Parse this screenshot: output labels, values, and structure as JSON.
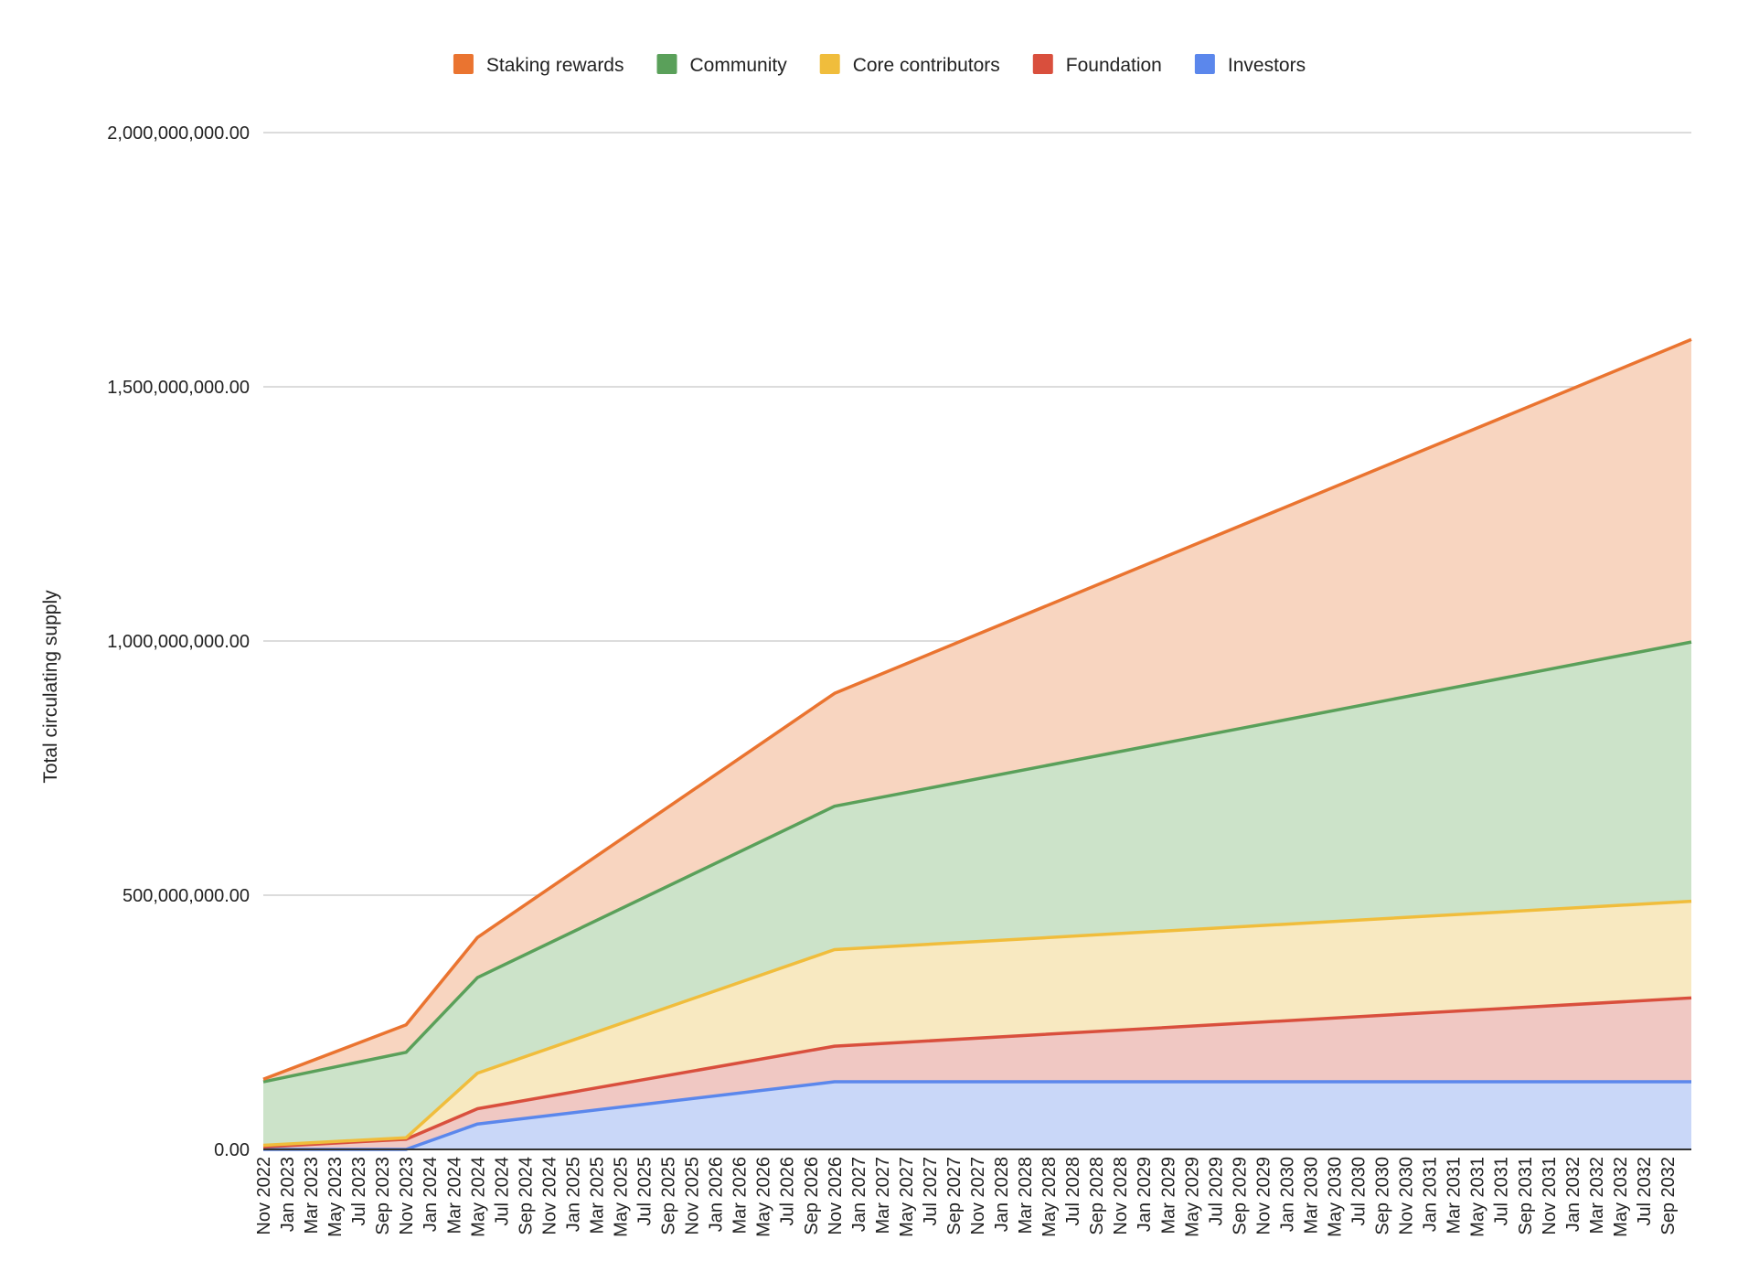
{
  "chart_data": {
    "type": "area",
    "stacked": true,
    "title": "",
    "xlabel": "",
    "ylabel": "Total circulating supply",
    "ylim": [
      0,
      2000000000
    ],
    "yticks": [
      0,
      500000000,
      1000000000,
      1500000000,
      2000000000
    ],
    "ytick_labels": [
      "0.00",
      "500,000,000.00",
      "1,000,000,000.00",
      "1,500,000,000.00",
      "2,000,000,000.00"
    ],
    "grid": true,
    "legend_position": "top",
    "x_start": "Nov 2022",
    "x_end": "Nov 2032",
    "x_tick_labels": [
      "Nov 2022",
      "Jan 2023",
      "Mar 2023",
      "May 2023",
      "Jul 2023",
      "Sep 2023",
      "Nov 2023",
      "Jan 2024",
      "Mar 2024",
      "May 2024",
      "Jul 2024",
      "Sep 2024",
      "Nov 2024",
      "Jan 2025",
      "Mar 2025",
      "May 2025",
      "Jul 2025",
      "Sep 2025",
      "Nov 2025",
      "Jan 2026",
      "Mar 2026",
      "May 2026",
      "Jul 2026",
      "Sep 2026",
      "Nov 2026",
      "Jan 2027",
      "Mar 2027",
      "May 2027",
      "Jul 2027",
      "Sep 2027",
      "Nov 2027",
      "Jan 2028",
      "Mar 2028",
      "May 2028",
      "Jul 2028",
      "Sep 2028",
      "Nov 2028",
      "Jan 2029",
      "Mar 2029",
      "May 2029",
      "Jul 2029",
      "Sep 2029",
      "Nov 2029",
      "Jan 2030",
      "Mar 2030",
      "May 2030",
      "Jul 2030",
      "Sep 2030",
      "Nov 2030",
      "Jan 2031",
      "Mar 2031",
      "May 2031",
      "Jul 2031",
      "Sep 2031",
      "Nov 2031",
      "Jan 2032",
      "Mar 2032",
      "May 2032",
      "Jul 2032",
      "Sep 2032"
    ],
    "x": [
      "Nov 2022",
      "Nov 2023",
      "May 2024",
      "Nov 2026",
      "Nov 2032"
    ],
    "series": [
      {
        "name": "Investors",
        "color": "#5b87ec",
        "fill": "#c9d7f8",
        "values": [
          0,
          0,
          50000000,
          133000000,
          133000000
        ]
      },
      {
        "name": "Foundation",
        "color": "#d94f3d",
        "fill": "#f0c8c3",
        "values": [
          5000000,
          20000000,
          30000000,
          70000000,
          165000000
        ]
      },
      {
        "name": "Core contributors",
        "color": "#f0bd3c",
        "fill": "#f8e9c1",
        "values": [
          3000000,
          3000000,
          70000000,
          190000000,
          190000000
        ]
      },
      {
        "name": "Community",
        "color": "#5aa05a",
        "fill": "#cce3c9",
        "values": [
          125000000,
          168000000,
          188000000,
          282000000,
          510000000
        ]
      },
      {
        "name": "Staking rewards",
        "color": "#ea7430",
        "fill": "#f8d5c0",
        "values": [
          5000000,
          54000000,
          79000000,
          222000000,
          595000000
        ]
      }
    ],
    "legend_order": [
      "Staking rewards",
      "Community",
      "Core contributors",
      "Foundation",
      "Investors"
    ],
    "colors": {
      "grid": "#d0d0d0",
      "axis": "#333333",
      "text": "#222222"
    }
  }
}
